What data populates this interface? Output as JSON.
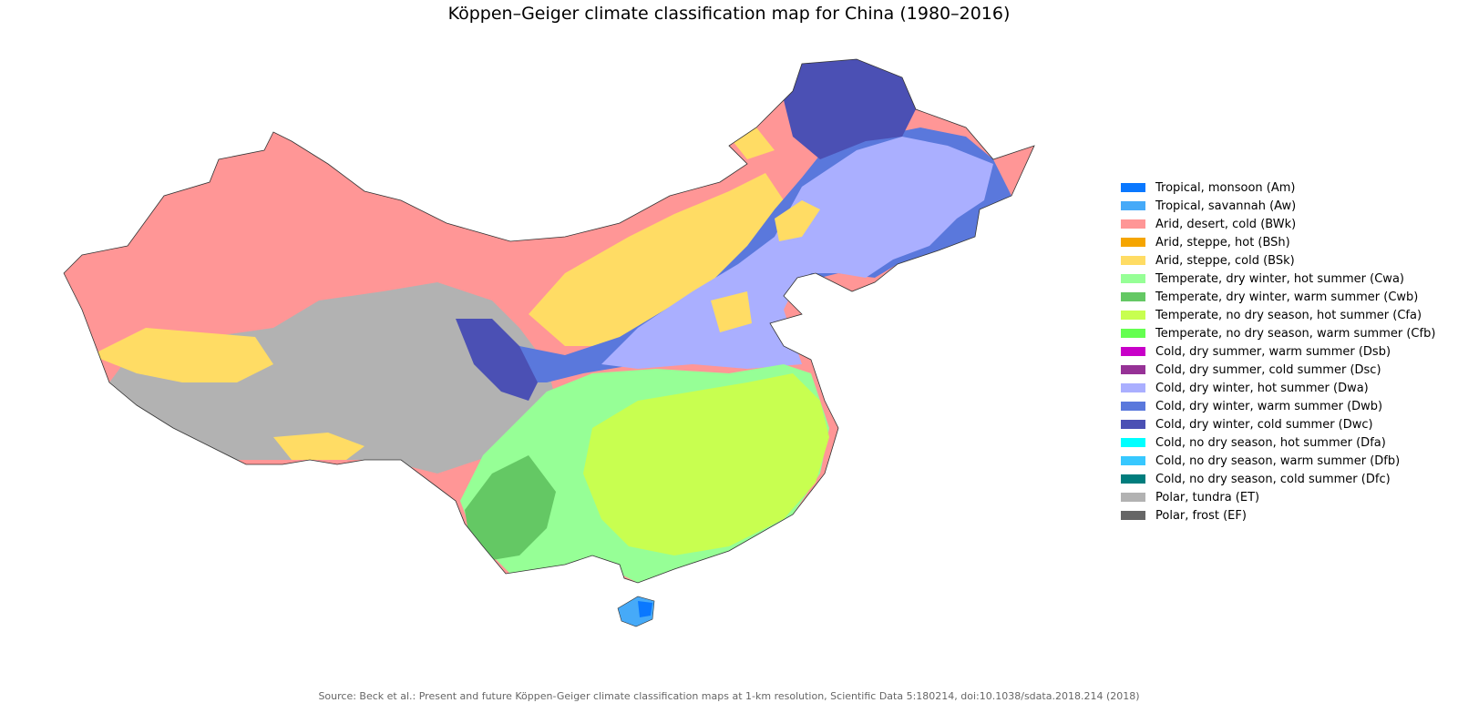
{
  "title": "Köppen–Geiger climate classification map for China (1980–2016)",
  "source": "Source: Beck et al.: Present and future Köppen-Geiger climate classification maps at 1-km resolution, Scientific Data 5:180214, doi:10.1038/sdata.2018.214 (2018)",
  "legend": [
    {
      "label": "Tropical, monsoon (Am)",
      "color": "#0a78ff"
    },
    {
      "label": "Tropical, savannah (Aw)",
      "color": "#46aaf8"
    },
    {
      "label": "Arid, desert, cold (BWk)",
      "color": "#ff9696"
    },
    {
      "label": "Arid, steppe, hot (BSh)",
      "color": "#f5a500"
    },
    {
      "label": "Arid, steppe, cold (BSk)",
      "color": "#ffdc64"
    },
    {
      "label": "Temperate, dry winter, hot summer (Cwa)",
      "color": "#96ff96"
    },
    {
      "label": "Temperate, dry winter, warm summer (Cwb)",
      "color": "#64c864"
    },
    {
      "label": "Temperate, no dry season, hot summer (Cfa)",
      "color": "#c8ff50"
    },
    {
      "label": "Temperate, no dry season, warm summer (Cfb)",
      "color": "#64ff50"
    },
    {
      "label": "Cold, dry summer, warm summer (Dsb)",
      "color": "#c800c8"
    },
    {
      "label": "Cold, dry summer, cold summer (Dsc)",
      "color": "#963296"
    },
    {
      "label": "Cold, dry winter, hot summer (Dwa)",
      "color": "#aaafff"
    },
    {
      "label": "Cold, dry winter, warm summer (Dwb)",
      "color": "#5a78dc"
    },
    {
      "label": "Cold, dry winter, cold summer (Dwc)",
      "color": "#4b50b4"
    },
    {
      "label": "Cold, no dry season, hot summer (Dfa)",
      "color": "#00ffff"
    },
    {
      "label": "Cold, no dry season, warm summer (Dfb)",
      "color": "#37c8ff"
    },
    {
      "label": "Cold, no dry season, cold summer (Dfc)",
      "color": "#007d7d"
    },
    {
      "label": "Polar, tundra (ET)",
      "color": "#b2b2b2"
    },
    {
      "label": "Polar, frost (EF)",
      "color": "#666666"
    }
  ]
}
